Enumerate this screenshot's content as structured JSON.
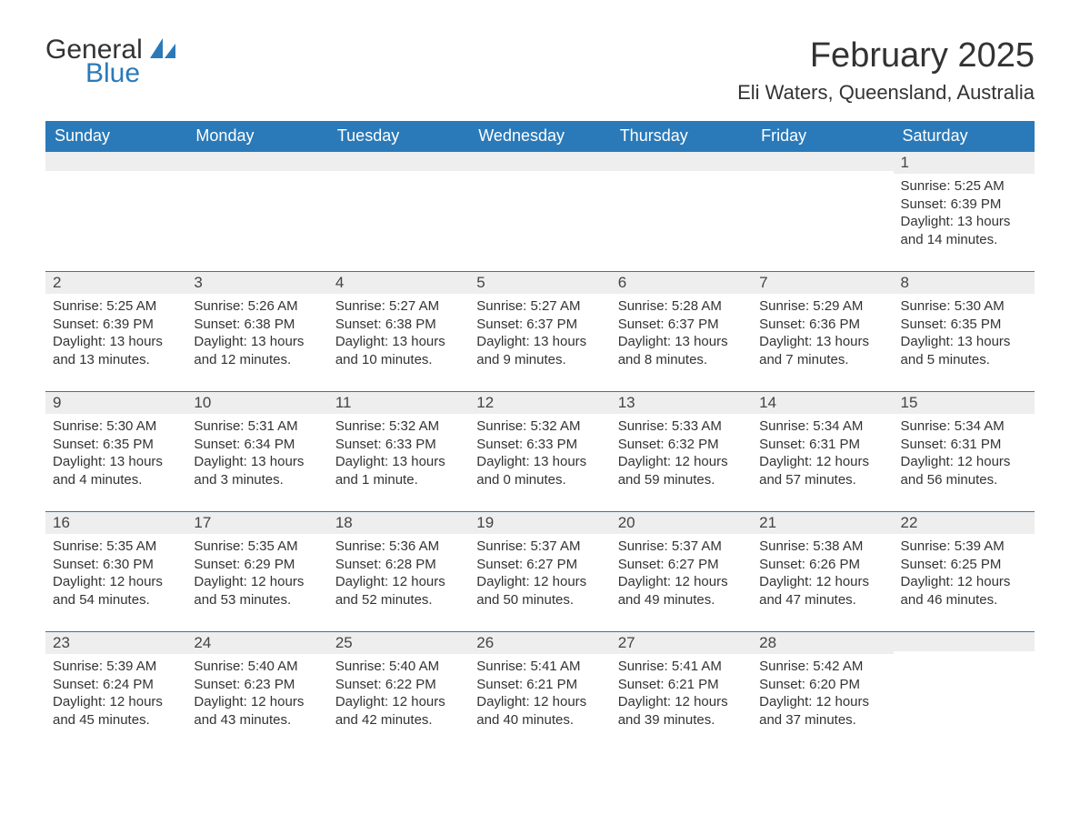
{
  "logo": {
    "text1": "General",
    "text2": "Blue"
  },
  "title": "February 2025",
  "location": "Eli Waters, Queensland, Australia",
  "colors": {
    "header_bg": "#2a7ab9",
    "header_text": "#ffffff",
    "daynum_bg": "#eeeeee",
    "daynum_border": "#2a7ab9",
    "text": "#333333",
    "logo_blue": "#2a7ab9"
  },
  "weekdays": [
    "Sunday",
    "Monday",
    "Tuesday",
    "Wednesday",
    "Thursday",
    "Friday",
    "Saturday"
  ],
  "weeks": [
    [
      {
        "day": "",
        "sunrise": "",
        "sunset": "",
        "daylight": ""
      },
      {
        "day": "",
        "sunrise": "",
        "sunset": "",
        "daylight": ""
      },
      {
        "day": "",
        "sunrise": "",
        "sunset": "",
        "daylight": ""
      },
      {
        "day": "",
        "sunrise": "",
        "sunset": "",
        "daylight": ""
      },
      {
        "day": "",
        "sunrise": "",
        "sunset": "",
        "daylight": ""
      },
      {
        "day": "",
        "sunrise": "",
        "sunset": "",
        "daylight": ""
      },
      {
        "day": "1",
        "sunrise": "Sunrise: 5:25 AM",
        "sunset": "Sunset: 6:39 PM",
        "daylight": "Daylight: 13 hours and 14 minutes."
      }
    ],
    [
      {
        "day": "2",
        "sunrise": "Sunrise: 5:25 AM",
        "sunset": "Sunset: 6:39 PM",
        "daylight": "Daylight: 13 hours and 13 minutes."
      },
      {
        "day": "3",
        "sunrise": "Sunrise: 5:26 AM",
        "sunset": "Sunset: 6:38 PM",
        "daylight": "Daylight: 13 hours and 12 minutes."
      },
      {
        "day": "4",
        "sunrise": "Sunrise: 5:27 AM",
        "sunset": "Sunset: 6:38 PM",
        "daylight": "Daylight: 13 hours and 10 minutes."
      },
      {
        "day": "5",
        "sunrise": "Sunrise: 5:27 AM",
        "sunset": "Sunset: 6:37 PM",
        "daylight": "Daylight: 13 hours and 9 minutes."
      },
      {
        "day": "6",
        "sunrise": "Sunrise: 5:28 AM",
        "sunset": "Sunset: 6:37 PM",
        "daylight": "Daylight: 13 hours and 8 minutes."
      },
      {
        "day": "7",
        "sunrise": "Sunrise: 5:29 AM",
        "sunset": "Sunset: 6:36 PM",
        "daylight": "Daylight: 13 hours and 7 minutes."
      },
      {
        "day": "8",
        "sunrise": "Sunrise: 5:30 AM",
        "sunset": "Sunset: 6:35 PM",
        "daylight": "Daylight: 13 hours and 5 minutes."
      }
    ],
    [
      {
        "day": "9",
        "sunrise": "Sunrise: 5:30 AM",
        "sunset": "Sunset: 6:35 PM",
        "daylight": "Daylight: 13 hours and 4 minutes."
      },
      {
        "day": "10",
        "sunrise": "Sunrise: 5:31 AM",
        "sunset": "Sunset: 6:34 PM",
        "daylight": "Daylight: 13 hours and 3 minutes."
      },
      {
        "day": "11",
        "sunrise": "Sunrise: 5:32 AM",
        "sunset": "Sunset: 6:33 PM",
        "daylight": "Daylight: 13 hours and 1 minute."
      },
      {
        "day": "12",
        "sunrise": "Sunrise: 5:32 AM",
        "sunset": "Sunset: 6:33 PM",
        "daylight": "Daylight: 13 hours and 0 minutes."
      },
      {
        "day": "13",
        "sunrise": "Sunrise: 5:33 AM",
        "sunset": "Sunset: 6:32 PM",
        "daylight": "Daylight: 12 hours and 59 minutes."
      },
      {
        "day": "14",
        "sunrise": "Sunrise: 5:34 AM",
        "sunset": "Sunset: 6:31 PM",
        "daylight": "Daylight: 12 hours and 57 minutes."
      },
      {
        "day": "15",
        "sunrise": "Sunrise: 5:34 AM",
        "sunset": "Sunset: 6:31 PM",
        "daylight": "Daylight: 12 hours and 56 minutes."
      }
    ],
    [
      {
        "day": "16",
        "sunrise": "Sunrise: 5:35 AM",
        "sunset": "Sunset: 6:30 PM",
        "daylight": "Daylight: 12 hours and 54 minutes."
      },
      {
        "day": "17",
        "sunrise": "Sunrise: 5:35 AM",
        "sunset": "Sunset: 6:29 PM",
        "daylight": "Daylight: 12 hours and 53 minutes."
      },
      {
        "day": "18",
        "sunrise": "Sunrise: 5:36 AM",
        "sunset": "Sunset: 6:28 PM",
        "daylight": "Daylight: 12 hours and 52 minutes."
      },
      {
        "day": "19",
        "sunrise": "Sunrise: 5:37 AM",
        "sunset": "Sunset: 6:27 PM",
        "daylight": "Daylight: 12 hours and 50 minutes."
      },
      {
        "day": "20",
        "sunrise": "Sunrise: 5:37 AM",
        "sunset": "Sunset: 6:27 PM",
        "daylight": "Daylight: 12 hours and 49 minutes."
      },
      {
        "day": "21",
        "sunrise": "Sunrise: 5:38 AM",
        "sunset": "Sunset: 6:26 PM",
        "daylight": "Daylight: 12 hours and 47 minutes."
      },
      {
        "day": "22",
        "sunrise": "Sunrise: 5:39 AM",
        "sunset": "Sunset: 6:25 PM",
        "daylight": "Daylight: 12 hours and 46 minutes."
      }
    ],
    [
      {
        "day": "23",
        "sunrise": "Sunrise: 5:39 AM",
        "sunset": "Sunset: 6:24 PM",
        "daylight": "Daylight: 12 hours and 45 minutes."
      },
      {
        "day": "24",
        "sunrise": "Sunrise: 5:40 AM",
        "sunset": "Sunset: 6:23 PM",
        "daylight": "Daylight: 12 hours and 43 minutes."
      },
      {
        "day": "25",
        "sunrise": "Sunrise: 5:40 AM",
        "sunset": "Sunset: 6:22 PM",
        "daylight": "Daylight: 12 hours and 42 minutes."
      },
      {
        "day": "26",
        "sunrise": "Sunrise: 5:41 AM",
        "sunset": "Sunset: 6:21 PM",
        "daylight": "Daylight: 12 hours and 40 minutes."
      },
      {
        "day": "27",
        "sunrise": "Sunrise: 5:41 AM",
        "sunset": "Sunset: 6:21 PM",
        "daylight": "Daylight: 12 hours and 39 minutes."
      },
      {
        "day": "28",
        "sunrise": "Sunrise: 5:42 AM",
        "sunset": "Sunset: 6:20 PM",
        "daylight": "Daylight: 12 hours and 37 minutes."
      },
      {
        "day": "",
        "sunrise": "",
        "sunset": "",
        "daylight": ""
      }
    ]
  ]
}
